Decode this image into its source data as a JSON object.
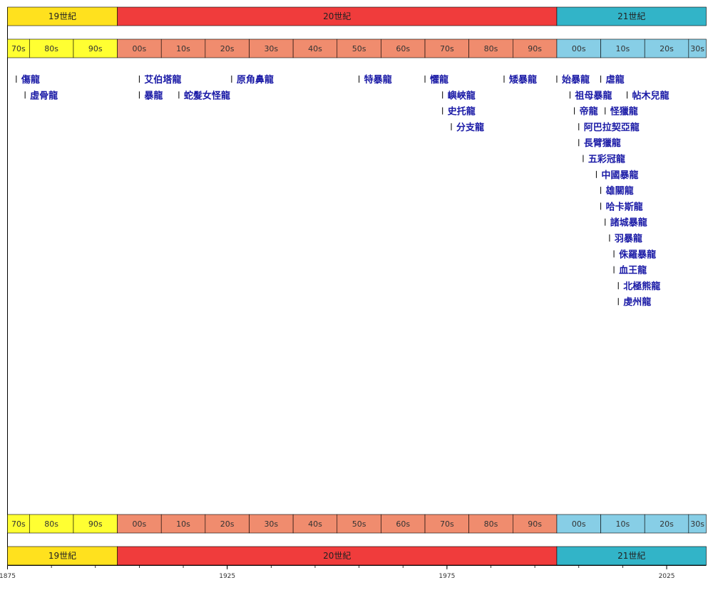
{
  "chart_data": {
    "type": "timeline",
    "x_range": [
      1875,
      2034
    ],
    "x_ticks": [
      1875,
      1925,
      1975,
      2025
    ],
    "centuries": [
      {
        "label": "19世紀",
        "start": 1875,
        "end": 1900,
        "color": "#ffe11e"
      },
      {
        "label": "20世紀",
        "start": 1900,
        "end": 2000,
        "color": "#f03c3c"
      },
      {
        "label": "21世紀",
        "start": 2000,
        "end": 2034,
        "color": "#32b4c8"
      }
    ],
    "decades": [
      {
        "label": "70s",
        "start": 1875,
        "end": 1880,
        "color": "#ffff32"
      },
      {
        "label": "80s",
        "start": 1880,
        "end": 1890,
        "color": "#ffff32"
      },
      {
        "label": "90s",
        "start": 1890,
        "end": 1900,
        "color": "#ffff32"
      },
      {
        "label": "00s",
        "start": 1900,
        "end": 1910,
        "color": "#f08c6e"
      },
      {
        "label": "10s",
        "start": 1910,
        "end": 1920,
        "color": "#f08c6e"
      },
      {
        "label": "20s",
        "start": 1920,
        "end": 1930,
        "color": "#f08c6e"
      },
      {
        "label": "30s",
        "start": 1930,
        "end": 1940,
        "color": "#f08c6e"
      },
      {
        "label": "40s",
        "start": 1940,
        "end": 1950,
        "color": "#f08c6e"
      },
      {
        "label": "50s",
        "start": 1950,
        "end": 1960,
        "color": "#f08c6e"
      },
      {
        "label": "60s",
        "start": 1960,
        "end": 1970,
        "color": "#f08c6e"
      },
      {
        "label": "70s",
        "start": 1970,
        "end": 1980,
        "color": "#f08c6e"
      },
      {
        "label": "80s",
        "start": 1980,
        "end": 1990,
        "color": "#f08c6e"
      },
      {
        "label": "90s",
        "start": 1990,
        "end": 2000,
        "color": "#f08c6e"
      },
      {
        "label": "00s",
        "start": 2000,
        "end": 2010,
        "color": "#87cee6"
      },
      {
        "label": "10s",
        "start": 2010,
        "end": 2020,
        "color": "#87cee6"
      },
      {
        "label": "20s",
        "start": 2020,
        "end": 2030,
        "color": "#87cee6"
      },
      {
        "label": "30s",
        "start": 2030,
        "end": 2034,
        "color": "#87cee6"
      }
    ],
    "events": [
      {
        "label": "傷龍",
        "year": 1877
      },
      {
        "label": "虛骨龍",
        "year": 1879
      },
      {
        "label": "艾伯塔龍",
        "year": 1905
      },
      {
        "label": "暴龍",
        "year": 1905
      },
      {
        "label": "蛇髮女怪龍",
        "year": 1914
      },
      {
        "label": "原角鼻龍",
        "year": 1926
      },
      {
        "label": "特暴龍",
        "year": 1955
      },
      {
        "label": "懼龍",
        "year": 1970
      },
      {
        "label": "嶼峽龍",
        "year": 1974
      },
      {
        "label": "史托龍",
        "year": 1974
      },
      {
        "label": "分支龍",
        "year": 1976
      },
      {
        "label": "矮暴龍",
        "year": 1988
      },
      {
        "label": "始暴龍",
        "year": 2000
      },
      {
        "label": "祖母暴龍",
        "year": 2003
      },
      {
        "label": "帝龍",
        "year": 2004
      },
      {
        "label": "阿巴拉契亞龍",
        "year": 2005
      },
      {
        "label": "長臂獵龍",
        "year": 2005
      },
      {
        "label": "五彩冠龍",
        "year": 2006
      },
      {
        "label": "中國暴龍",
        "year": 2009
      },
      {
        "label": "虐龍",
        "year": 2010
      },
      {
        "label": "雄關龍",
        "year": 2010
      },
      {
        "label": "哈卡斯龍",
        "year": 2010
      },
      {
        "label": "怪獵龍",
        "year": 2011
      },
      {
        "label": "諸城暴龍",
        "year": 2011
      },
      {
        "label": "羽暴龍",
        "year": 2012
      },
      {
        "label": "侏羅暴龍",
        "year": 2013
      },
      {
        "label": "血王龍",
        "year": 2013
      },
      {
        "label": "北極熊龍",
        "year": 2014
      },
      {
        "label": "虔州龍",
        "year": 2014
      },
      {
        "label": "帖木兒龍",
        "year": 2016
      }
    ]
  }
}
